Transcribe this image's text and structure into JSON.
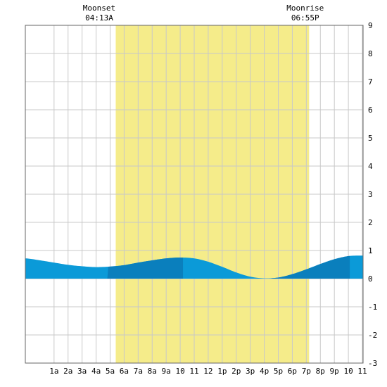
{
  "colors": {
    "background": "#ffffff",
    "grid": "#c8c8c8",
    "daylight": "#f5ec8a",
    "tide_light": "#0b9ad8",
    "tide_dark": "#0a7fbd",
    "border": "#666666"
  },
  "moon_events": [
    {
      "label": "Moonset",
      "time": "04:13A",
      "hour": 4.22
    },
    {
      "label": "Moonrise",
      "time": "06:55P",
      "hour": 18.92
    }
  ],
  "chart_data": {
    "type": "area",
    "title": "",
    "xlabel": "",
    "ylabel": "",
    "xlim": [
      -1.05,
      23.05
    ],
    "ylim": [
      -3,
      9
    ],
    "grid": true,
    "yticks": [
      -3,
      -2,
      -1,
      0,
      1,
      2,
      3,
      4,
      5,
      6,
      7,
      8,
      9
    ],
    "xticks": [
      {
        "x": 1,
        "label": "1a"
      },
      {
        "x": 2,
        "label": "2a"
      },
      {
        "x": 3,
        "label": "3a"
      },
      {
        "x": 4,
        "label": "4a"
      },
      {
        "x": 5,
        "label": "5a"
      },
      {
        "x": 6,
        "label": "6a"
      },
      {
        "x": 7,
        "label": "7a"
      },
      {
        "x": 8,
        "label": "8a"
      },
      {
        "x": 9,
        "label": "9a"
      },
      {
        "x": 10,
        "label": "10"
      },
      {
        "x": 11,
        "label": "11"
      },
      {
        "x": 12,
        "label": "12"
      },
      {
        "x": 13,
        "label": "1p"
      },
      {
        "x": 14,
        "label": "2p"
      },
      {
        "x": 15,
        "label": "3p"
      },
      {
        "x": 16,
        "label": "4p"
      },
      {
        "x": 17,
        "label": "5p"
      },
      {
        "x": 18,
        "label": "6p"
      },
      {
        "x": 19,
        "label": "7p"
      },
      {
        "x": 20,
        "label": "8p"
      },
      {
        "x": 21,
        "label": "9p"
      },
      {
        "x": 22,
        "label": "10"
      },
      {
        "x": 23,
        "label": "11"
      }
    ],
    "daylight": [
      5.4,
      19.2
    ],
    "dark_bands": [
      [
        4.8,
        10.2
      ],
      [
        16.5,
        22.1
      ]
    ],
    "series": [
      {
        "x": [
          -1,
          0,
          1,
          2,
          3,
          4,
          5,
          6,
          7,
          8,
          9,
          10,
          11,
          12,
          13,
          14,
          15,
          16,
          17,
          18,
          19,
          20,
          21,
          22,
          23
        ],
        "values": [
          0.72,
          0.65,
          0.57,
          0.49,
          0.44,
          0.41,
          0.43,
          0.48,
          0.57,
          0.65,
          0.72,
          0.75,
          0.72,
          0.6,
          0.42,
          0.22,
          0.07,
          0.01,
          0.04,
          0.16,
          0.33,
          0.52,
          0.69,
          0.8,
          0.82
        ]
      }
    ]
  }
}
